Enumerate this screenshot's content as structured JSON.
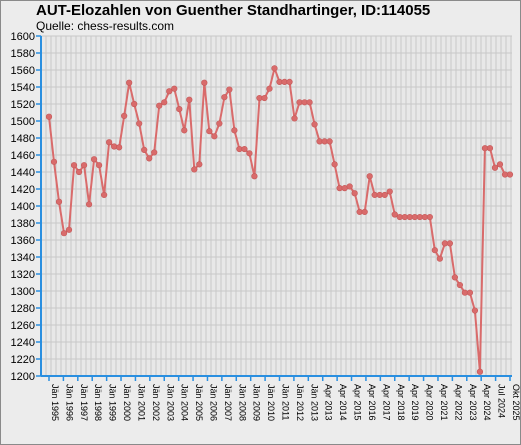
{
  "chart_data": {
    "type": "line",
    "title": "AUT-Elozahlen von Guenther Standhartinger, ID:114055",
    "subtitle": "Quelle: chess-results.com",
    "xlabel": "",
    "ylabel": "",
    "ylim": [
      1200,
      1600
    ],
    "yticks": [
      1200,
      1220,
      1240,
      1260,
      1280,
      1300,
      1320,
      1340,
      1360,
      1380,
      1400,
      1420,
      1440,
      1460,
      1480,
      1500,
      1520,
      1540,
      1560,
      1580,
      1600
    ],
    "grid": true,
    "x_tick_labels": [
      "Jän 1995",
      "Jän 1996",
      "Jän 1997",
      "Jän 1998",
      "Jän 1999",
      "Jän 2000",
      "Jän 2001",
      "Jän 2002",
      "Jän 2003",
      "Jän 2004",
      "Jän 2005",
      "Jän 2006",
      "Jän 2007",
      "Jän 2008",
      "Jän 2009",
      "Jän 2010",
      "Jän 2011",
      "Jän 2012",
      "Jän 2013",
      "Apr 2013",
      "Apr 2014",
      "Apr 2015",
      "Apr 2016",
      "Apr 2017",
      "Apr 2018",
      "Apr 2019",
      "Apr 2020",
      "Apr 2021",
      "Apr 2022",
      "Apr 2023",
      "Apr 2024",
      "Jul 2024",
      "Okt 2025"
    ],
    "series": [
      {
        "name": "",
        "color": "#d96b6b",
        "values": [
          1505,
          1452,
          1405,
          1368,
          1372,
          1448,
          1440,
          1448,
          1402,
          1455,
          1448,
          1413,
          1475,
          1470,
          1469,
          1506,
          1545,
          1520,
          1497,
          1466,
          1456,
          1463,
          1518,
          1522,
          1535,
          1538,
          1514,
          1489,
          1525,
          1443,
          1449,
          1545,
          1488,
          1482,
          1497,
          1528,
          1537,
          1489,
          1467,
          1467,
          1462,
          1435,
          1527,
          1527,
          1538,
          1562,
          1546,
          1546,
          1546,
          1503,
          1522,
          1522,
          1522,
          1496,
          1476,
          1476,
          1476,
          1449,
          1421,
          1421,
          1423,
          1415,
          1393,
          1393,
          1435,
          1413,
          1413,
          1413,
          1417,
          1390,
          1387,
          1387,
          1387,
          1387,
          1387,
          1387,
          1387,
          1348,
          1338,
          1356,
          1356,
          1316,
          1307,
          1298,
          1298,
          1277,
          1205,
          1468,
          1468,
          1445,
          1449,
          1437,
          1437
        ]
      }
    ]
  }
}
